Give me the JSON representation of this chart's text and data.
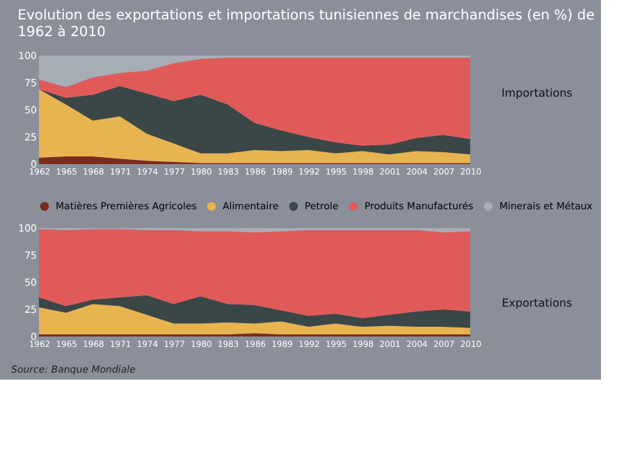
{
  "chart_data": [
    {
      "type": "area",
      "stacked": true,
      "title": "Evolution des exportations et importations tunisiennes de marchandises (en %) de 1962 à 2010",
      "x": [
        1962,
        1965,
        1968,
        1971,
        1974,
        1977,
        1980,
        1983,
        1986,
        1989,
        1992,
        1995,
        1998,
        2001,
        2004,
        2007,
        2010
      ],
      "xlim": [
        1962,
        2010
      ],
      "xticks": [
        1962,
        1965,
        1968,
        1971,
        1974,
        1977,
        1980,
        1983,
        1986,
        1989,
        1992,
        1995,
        1998,
        2001,
        2004,
        2007,
        2010
      ],
      "ylim": [
        0,
        100
      ],
      "yticks": [
        0,
        25,
        50,
        75,
        100
      ],
      "legend": "bottom",
      "annotations": [
        "Importations"
      ],
      "series": [
        {
          "name": "Matières Premières Agricoles",
          "color": "#7a2b1c",
          "values": [
            6,
            7,
            7,
            5,
            3,
            2,
            1,
            1,
            1,
            1,
            1,
            1,
            1,
            1,
            1,
            1,
            1
          ]
        },
        {
          "name": "Alimentaire",
          "color": "#e8b450",
          "values": [
            63,
            48,
            33,
            39,
            25,
            17,
            9,
            9,
            12,
            11,
            12,
            9,
            11,
            8,
            11,
            10,
            8
          ]
        },
        {
          "name": "Petrole",
          "color": "#3b4646",
          "values": [
            0,
            6,
            24,
            28,
            37,
            39,
            54,
            45,
            25,
            19,
            12,
            10,
            5,
            9,
            12,
            16,
            14
          ]
        },
        {
          "name": "Produits Manufacturés",
          "color": "#e05a5a",
          "values": [
            9,
            10,
            16,
            12,
            21,
            35,
            33,
            43,
            60,
            67,
            73,
            78,
            81,
            80,
            74,
            71,
            75
          ]
        },
        {
          "name": "Minerais et Métaux",
          "color": "#a7adb5",
          "values": [
            22,
            29,
            20,
            16,
            14,
            7,
            3,
            2,
            2,
            2,
            2,
            2,
            2,
            2,
            2,
            2,
            2
          ]
        }
      ]
    },
    {
      "type": "area",
      "stacked": true,
      "x": [
        1962,
        1965,
        1968,
        1971,
        1974,
        1977,
        1980,
        1983,
        1986,
        1989,
        1992,
        1995,
        1998,
        2001,
        2004,
        2007,
        2010
      ],
      "xlim": [
        1962,
        2010
      ],
      "xticks": [
        1962,
        1965,
        1968,
        1971,
        1974,
        1977,
        1980,
        1983,
        1986,
        1989,
        1992,
        1995,
        1998,
        2001,
        2004,
        2007,
        2010
      ],
      "ylim": [
        0,
        100
      ],
      "yticks": [
        0,
        25,
        50,
        75,
        100
      ],
      "annotations": [
        "Exportations",
        "Source: Banque Mondiale"
      ],
      "series": [
        {
          "color": "#7a2b1c",
          "values": [
            2,
            2,
            2,
            2,
            2,
            2,
            2,
            2,
            3,
            2,
            2,
            2,
            2,
            2,
            2,
            2,
            2
          ]
        },
        {
          "color": "#e8b450",
          "values": [
            25,
            20,
            28,
            26,
            18,
            10,
            10,
            11,
            9,
            12,
            7,
            10,
            7,
            8,
            7,
            7,
            6
          ]
        },
        {
          "color": "#3b4646",
          "values": [
            9,
            6,
            4,
            8,
            18,
            18,
            25,
            17,
            17,
            10,
            10,
            9,
            8,
            10,
            14,
            16,
            15
          ]
        },
        {
          "color": "#e05a5a",
          "values": [
            63,
            70,
            65,
            63,
            60,
            68,
            60,
            67,
            67,
            73,
            79,
            77,
            81,
            78,
            75,
            71,
            74
          ]
        },
        {
          "color": "#a7adb5",
          "values": [
            1,
            2,
            1,
            1,
            2,
            2,
            3,
            3,
            4,
            3,
            2,
            2,
            2,
            2,
            2,
            4,
            3
          ]
        }
      ]
    }
  ]
}
